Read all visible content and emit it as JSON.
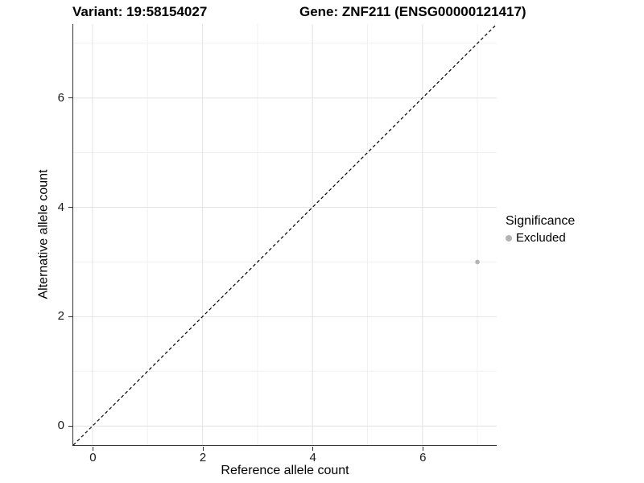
{
  "chart_data": {
    "type": "scatter",
    "title_left": "Variant: 19:58154027",
    "title_right": "Gene: ZNF211 (ENSG00000121417)",
    "xlabel": "Reference allele count",
    "ylabel": "Alternative allele count",
    "xlim": [
      -0.35,
      7.35
    ],
    "ylim": [
      -0.35,
      7.35
    ],
    "x_major_ticks": [
      0,
      2,
      4,
      6
    ],
    "y_major_ticks": [
      0,
      2,
      4,
      6
    ],
    "x_minor_gridlines": [
      1,
      3,
      5,
      7
    ],
    "y_minor_gridlines": [
      1,
      3,
      5,
      7
    ],
    "grid": true,
    "identity_line": {
      "style": "dashed",
      "from": [
        -0.35,
        -0.35
      ],
      "to": [
        7.35,
        7.35
      ]
    },
    "series": [
      {
        "name": "Excluded",
        "points": [
          {
            "x": 7,
            "y": 3
          }
        ]
      }
    ],
    "legend": {
      "title": "Significance",
      "position": "right",
      "entries": [
        {
          "label": "Excluded"
        }
      ]
    },
    "colors": {
      "point": "#b4b4b4",
      "grid_major": "#e3e3e3",
      "grid_minor": "#f1f1f1",
      "axis_line": "#333333",
      "identity_line": "#000000",
      "text": "#000000"
    }
  }
}
